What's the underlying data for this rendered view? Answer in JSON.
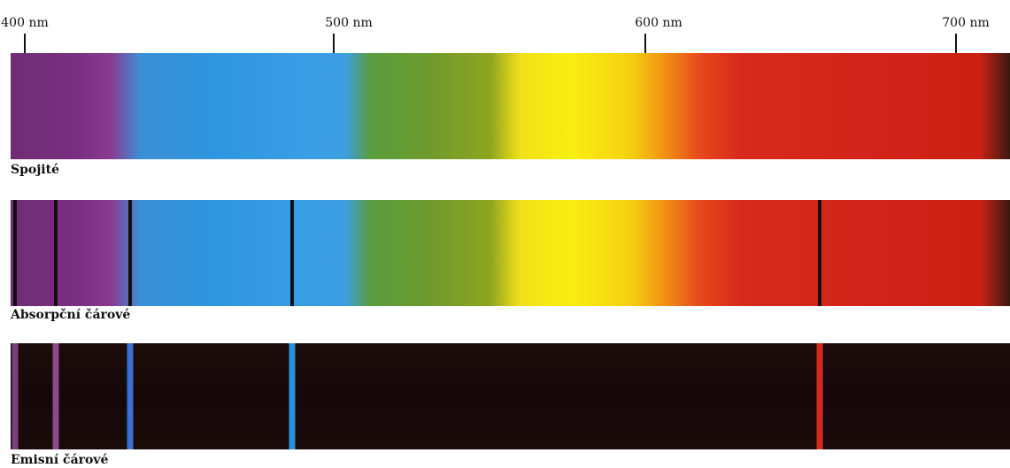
{
  "axis": {
    "ticks": [
      {
        "label": "400 nm",
        "nm": 400
      },
      {
        "label": "500 nm",
        "nm": 500
      },
      {
        "label": "600 nm",
        "nm": 600
      },
      {
        "label": "700 nm",
        "nm": 700
      }
    ]
  },
  "spectra": {
    "continuous": {
      "label": "Spojité"
    },
    "absorption": {
      "label": "Absorpční čárové",
      "lines_nm": [
        397,
        410,
        434,
        486,
        656
      ]
    },
    "emission": {
      "label": "Emisní čárové",
      "lines": [
        {
          "nm": 397,
          "color": "#7b3e7e"
        },
        {
          "nm": 410,
          "color": "#8a4a8c"
        },
        {
          "nm": 434,
          "color": "#3b6fd0"
        },
        {
          "nm": 486,
          "color": "#2a8fe0"
        },
        {
          "nm": 656,
          "color": "#d12a1e"
        }
      ]
    }
  }
}
